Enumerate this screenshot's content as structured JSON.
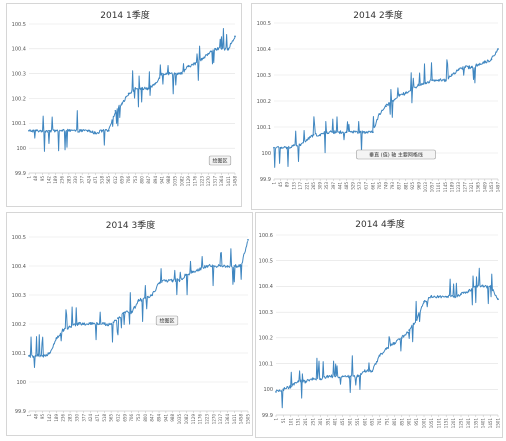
{
  "chart_data": [
    {
      "type": "line",
      "title": "2014 1季度",
      "ylim": [
        99.9,
        100.5
      ],
      "yticks": [
        "99.9",
        "100",
        "100.1",
        "100.2",
        "100.3",
        "100.4",
        "100.5"
      ],
      "xticks": [
        "1",
        "48",
        "95",
        "142",
        "189",
        "236",
        "283",
        "330",
        "377",
        "424",
        "471",
        "518",
        "565",
        "612",
        "659",
        "706",
        "753",
        "800",
        "847",
        "894",
        "941",
        "988",
        "1035",
        "1082",
        "1129",
        "1176",
        "1223",
        "1270",
        "1317",
        "1364",
        "1411",
        "1458"
      ],
      "series_color": "#3f86c0",
      "annotation": "绘图区",
      "series": [
        {
          "x": [
            1,
            48,
            95,
            142,
            189,
            236,
            283,
            330,
            377,
            424,
            471,
            518,
            565,
            612,
            659,
            706,
            753,
            800,
            847,
            894,
            941,
            988,
            1035,
            1082,
            1129,
            1176,
            1223,
            1270,
            1317,
            1364,
            1411,
            1458
          ],
          "values": [
            100.07,
            100.07,
            100.07,
            100.07,
            100.07,
            100.07,
            100.07,
            100.07,
            100.07,
            100.07,
            100.06,
            100.07,
            100.07,
            100.15,
            100.18,
            100.22,
            100.24,
            100.24,
            100.24,
            100.26,
            100.3,
            100.3,
            100.3,
            100.3,
            100.33,
            100.34,
            100.36,
            100.38,
            100.4,
            100.4,
            100.4,
            100.45
          ]
        }
      ]
    },
    {
      "type": "line",
      "title": "2014 2季度",
      "ylim": [
        99.9,
        100.5
      ],
      "yticks": [
        "99.9",
        "100",
        "100.1",
        "100.2",
        "100.3",
        "100.4",
        "100.5"
      ],
      "xticks": [
        "1",
        "45",
        "89",
        "133",
        "177",
        "221",
        "265",
        "309",
        "353",
        "397",
        "441",
        "485",
        "529",
        "573",
        "617",
        "661",
        "705",
        "749",
        "793",
        "837",
        "881",
        "925",
        "969",
        "1013",
        "1057",
        "1101",
        "1145",
        "1189",
        "1233",
        "1277",
        "1321",
        "1365",
        "1409",
        "1453",
        "1497"
      ],
      "series_color": "#3f86c0",
      "annotation": "垂直 (值) 轴 主要网格线",
      "series": [
        {
          "x": [
            1,
            45,
            89,
            133,
            177,
            221,
            265,
            309,
            353,
            397,
            441,
            485,
            529,
            573,
            617,
            661,
            705,
            749,
            793,
            837,
            881,
            925,
            969,
            1013,
            1057,
            1101,
            1145,
            1189,
            1233,
            1277,
            1321,
            1365,
            1409,
            1453,
            1497
          ],
          "values": [
            100.02,
            100.02,
            100.02,
            100.03,
            100.03,
            100.05,
            100.07,
            100.07,
            100.08,
            100.08,
            100.08,
            100.08,
            100.08,
            100.08,
            100.08,
            100.08,
            100.15,
            100.18,
            100.2,
            100.22,
            100.23,
            100.25,
            100.26,
            100.27,
            100.28,
            100.28,
            100.28,
            100.3,
            100.32,
            100.33,
            100.33,
            100.34,
            100.35,
            100.36,
            100.4
          ]
        }
      ]
    },
    {
      "type": "line",
      "title": "2014 3季度",
      "ylim": [
        99.9,
        100.5
      ],
      "yticks": [
        "99.9",
        "100",
        "100.1",
        "100.2",
        "100.3",
        "100.4",
        "100.5"
      ],
      "xticks": [
        "1",
        "48",
        "95",
        "142",
        "189",
        "236",
        "283",
        "330",
        "377",
        "424",
        "471",
        "518",
        "565",
        "612",
        "659",
        "706",
        "753",
        "800",
        "847",
        "894",
        "941",
        "988",
        "1035",
        "1082",
        "1129",
        "1176",
        "1223",
        "1270",
        "1317",
        "1364",
        "1411",
        "1458",
        "1505"
      ],
      "series_color": "#3f86c0",
      "annotation": "绘图区",
      "series": [
        {
          "x": [
            1,
            48,
            95,
            142,
            189,
            236,
            283,
            330,
            377,
            424,
            471,
            518,
            565,
            612,
            659,
            706,
            753,
            800,
            847,
            894,
            941,
            988,
            1035,
            1082,
            1129,
            1176,
            1223,
            1270,
            1317,
            1364,
            1411,
            1458,
            1505
          ],
          "values": [
            100.09,
            100.09,
            100.09,
            100.1,
            100.15,
            100.18,
            100.19,
            100.2,
            100.2,
            100.2,
            100.2,
            100.2,
            100.2,
            100.22,
            100.24,
            100.24,
            100.28,
            100.29,
            100.3,
            100.34,
            100.35,
            100.35,
            100.35,
            100.37,
            100.38,
            100.39,
            100.4,
            100.4,
            100.4,
            100.4,
            100.4,
            100.4,
            100.49
          ]
        }
      ]
    },
    {
      "type": "line",
      "title": "2014 4季度",
      "ylim": [
        99.9,
        100.6
      ],
      "yticks": [
        "99.9",
        "100",
        "100.1",
        "100.2",
        "100.3",
        "100.4",
        "100.5",
        "100.6"
      ],
      "xticks": [
        "1",
        "51",
        "101",
        "151",
        "201",
        "251",
        "301",
        "351",
        "401",
        "451",
        "501",
        "551",
        "601",
        "651",
        "701",
        "751",
        "801",
        "851",
        "901",
        "951",
        "1001",
        "1051",
        "1101",
        "1151",
        "1201",
        "1251",
        "1301",
        "1351",
        "1401",
        "1451",
        "1501"
      ],
      "series_color": "#3f86c0",
      "annotation": "",
      "series": [
        {
          "x": [
            1,
            51,
            101,
            151,
            201,
            251,
            301,
            351,
            401,
            451,
            501,
            551,
            601,
            651,
            701,
            751,
            801,
            851,
            901,
            951,
            1001,
            1051,
            1101,
            1151,
            1201,
            1251,
            1301,
            1351,
            1401,
            1451,
            1501
          ],
          "values": [
            99.99,
            100,
            100.01,
            100.03,
            100.03,
            100.04,
            100.04,
            100.05,
            100.05,
            100.05,
            100.05,
            100.05,
            100.07,
            100.07,
            100.13,
            100.16,
            100.18,
            100.2,
            100.23,
            100.27,
            100.34,
            100.36,
            100.36,
            100.36,
            100.36,
            100.37,
            100.38,
            100.4,
            100.4,
            100.4,
            100.35
          ]
        }
      ]
    }
  ]
}
